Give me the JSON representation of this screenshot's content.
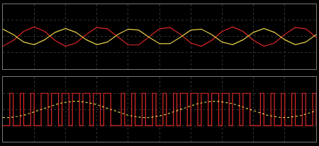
{
  "chart_data": [
    {
      "type": "line",
      "xlim": [
        0,
        450
      ],
      "xticks": [
        0,
        45,
        90,
        135,
        180,
        225,
        270,
        315,
        360,
        405,
        450
      ],
      "ylim": [
        -1,
        1
      ],
      "yticks": [
        -1,
        -0.5,
        0,
        0.5,
        1
      ],
      "grid": true,
      "tick_labels": false,
      "x": [
        0,
        15,
        30,
        45,
        60,
        75,
        90,
        105,
        120,
        135,
        150,
        165,
        180,
        195,
        210,
        225,
        240,
        255,
        270,
        285,
        300,
        315,
        330,
        345,
        360,
        375,
        390,
        405,
        420,
        435,
        450
      ],
      "series": [
        {
          "color": "#e02828",
          "line_style": "solid",
          "values": [
            -0.3,
            -0.12,
            0.16,
            0.3,
            0.16,
            -0.12,
            -0.3,
            -0.2,
            0.07,
            0.28,
            0.24,
            -0.02,
            -0.26,
            -0.26,
            -0.02,
            0.24,
            0.28,
            0.07,
            -0.2,
            -0.3,
            -0.12,
            0.16,
            0.3,
            0.16,
            -0.12,
            -0.3,
            -0.2,
            0.07,
            0.28,
            0.24,
            -0.02
          ]
        },
        {
          "color": "#e8d048",
          "line_style": "solid",
          "values": [
            0.23,
            0.06,
            -0.17,
            -0.25,
            -0.1,
            0.13,
            0.25,
            0.13,
            -0.1,
            -0.25,
            -0.17,
            0.06,
            0.23,
            0.2,
            -0.02,
            -0.22,
            -0.22,
            -0.02,
            0.2,
            0.23,
            0.06,
            -0.17,
            -0.25,
            -0.1,
            0.13,
            0.25,
            0.13,
            -0.1,
            -0.25,
            -0.17,
            0.06
          ]
        }
      ]
    },
    {
      "type": "line",
      "xlim": [
        0,
        450
      ],
      "xticks": [
        0,
        45,
        90,
        135,
        180,
        225,
        270,
        315,
        360,
        405,
        450
      ],
      "ylim": [
        -1,
        1
      ],
      "yticks": [
        -1,
        -0.5,
        0,
        0.5,
        1
      ],
      "grid": true,
      "tick_labels": false,
      "series": [
        {
          "color": "#e02828",
          "line_style": "step",
          "x": [
            0,
            5,
            10,
            15,
            20,
            25,
            30,
            35,
            40,
            45,
            50,
            55,
            60,
            65,
            70,
            75,
            80,
            85,
            90,
            95,
            100,
            105,
            110,
            115,
            120,
            125,
            130,
            135,
            140,
            145,
            150,
            155,
            160,
            165,
            170,
            175,
            180,
            185,
            190,
            195,
            200,
            205,
            210,
            215,
            220,
            225,
            230,
            235,
            240,
            245,
            250,
            255,
            260,
            265,
            270,
            275,
            280,
            285,
            290,
            295,
            300,
            305,
            310,
            315,
            320,
            325,
            330,
            335,
            340,
            345,
            350,
            355,
            360,
            365,
            370,
            375,
            380,
            385,
            390,
            395,
            400,
            405,
            410,
            415,
            420,
            425,
            430,
            435,
            440,
            445,
            450
          ],
          "values": [
            -0.5,
            -0.5,
            0.5,
            -0.5,
            -0.5,
            0.5,
            -0.5,
            -0.5,
            0.5,
            -0.5,
            -0.5,
            0.5,
            0.5,
            -0.5,
            0.5,
            0.5,
            -0.5,
            0.5,
            0.5,
            -0.5,
            0.5,
            0.5,
            -0.5,
            0.5,
            0.5,
            -0.5,
            0.5,
            0.5,
            -0.5,
            0.5,
            0.5,
            -0.5,
            -0.5,
            -0.5,
            0.5,
            -0.5,
            -0.5,
            0.5,
            -0.5,
            -0.5,
            0.5,
            -0.5,
            -0.5,
            0.5,
            -0.5,
            -0.5,
            0.5,
            -0.5,
            -0.5,
            0.5,
            -0.5,
            0.5,
            0.5,
            -0.5,
            0.5,
            0.5,
            -0.5,
            0.5,
            0.5,
            -0.5,
            0.5,
            0.5,
            -0.5,
            0.5,
            0.5,
            -0.5,
            0.5,
            0.5,
            -0.5,
            0.5,
            0.5,
            -0.5,
            -0.5,
            -0.5,
            0.5,
            -0.5,
            -0.5,
            0.5,
            -0.5,
            -0.5,
            0.5,
            -0.5,
            -0.5,
            0.5,
            -0.5,
            -0.5,
            0.5,
            -0.5,
            -0.5,
            0.5,
            -0.5
          ]
        },
        {
          "color": "#e8d048",
          "line_style": "dotted",
          "x": [
            0,
            10,
            20,
            30,
            40,
            50,
            60,
            70,
            80,
            90,
            100,
            110,
            120,
            130,
            140,
            150,
            160,
            170,
            180,
            190,
            200,
            210,
            220,
            230,
            240,
            250,
            260,
            270,
            280,
            290,
            300,
            310,
            320,
            330,
            340,
            350,
            360,
            370,
            380,
            390,
            400,
            410,
            420,
            430,
            440,
            450
          ],
          "values": [
            -0.25,
            -0.25,
            -0.22,
            -0.18,
            -0.11,
            -0.04,
            0.04,
            0.11,
            0.18,
            0.22,
            0.25,
            0.25,
            0.22,
            0.18,
            0.11,
            0.04,
            -0.04,
            -0.11,
            -0.18,
            -0.22,
            -0.25,
            -0.25,
            -0.22,
            -0.18,
            -0.11,
            -0.04,
            0.04,
            0.11,
            0.18,
            0.22,
            0.25,
            0.25,
            0.22,
            0.18,
            0.11,
            0.04,
            -0.04,
            -0.11,
            -0.18,
            -0.22,
            -0.25,
            -0.25,
            -0.22,
            -0.18,
            -0.11,
            -0.04
          ]
        }
      ]
    }
  ]
}
